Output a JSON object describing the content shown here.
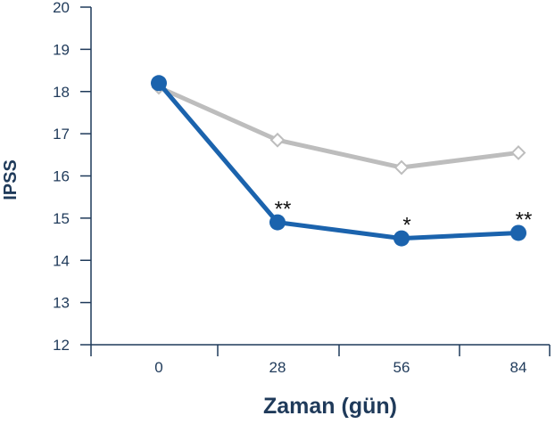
{
  "chart_data": {
    "type": "line",
    "xlabel": "Zaman (gün)",
    "ylabel": "IPSS",
    "x": [
      0,
      28,
      56,
      84
    ],
    "xticks": [
      "0",
      "28",
      "56",
      "84"
    ],
    "ylim": [
      12,
      20
    ],
    "yticks": [
      "12",
      "13",
      "14",
      "15",
      "16",
      "17",
      "18",
      "19",
      "20"
    ],
    "grid": false,
    "series": [
      {
        "values": [
          18.1,
          16.85,
          16.2,
          16.55
        ],
        "color": "#bdbdbd",
        "marker": "open-diamond"
      },
      {
        "values": [
          18.2,
          14.9,
          14.52,
          14.65
        ],
        "color": "#1b63ad",
        "marker": "filled-circle"
      }
    ],
    "annotations": [
      {
        "x": 28,
        "text": "**"
      },
      {
        "x": 56,
        "text": "*"
      },
      {
        "x": 84,
        "text": "**"
      }
    ]
  }
}
